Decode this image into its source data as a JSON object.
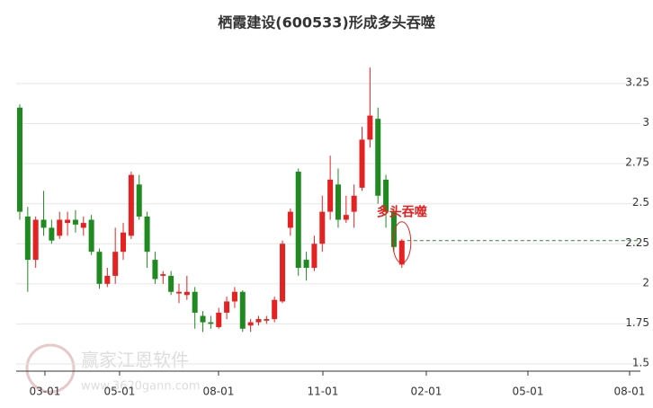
{
  "chart_data": {
    "type": "candlestick",
    "title": "栖霞建设(600533)形成多头吞噬",
    "annotation": "多头吞噬",
    "reference_line": 2.27,
    "watermark": "赢家江恩软件",
    "watermark_url": "www.3620gann.com",
    "up_color": "#e52222",
    "down_color": "#1f8a1f",
    "x": [
      0,
      1,
      2,
      3,
      4,
      5,
      6,
      7,
      8,
      9,
      10,
      11,
      12,
      13,
      14,
      15,
      16,
      17,
      18,
      19,
      20,
      21,
      22,
      23,
      24,
      25,
      26,
      27,
      28,
      29,
      30,
      31,
      32,
      33,
      34,
      35,
      36,
      37,
      38,
      39,
      40,
      41,
      42,
      43,
      44,
      45,
      46,
      47,
      48
    ],
    "open": [
      3.1,
      2.42,
      2.15,
      2.4,
      2.35,
      2.3,
      2.38,
      2.4,
      2.35,
      2.4,
      2.2,
      2.0,
      2.05,
      2.2,
      2.3,
      2.62,
      2.42,
      2.15,
      2.05,
      2.05,
      1.94,
      1.93,
      1.95,
      1.8,
      1.76,
      1.73,
      1.82,
      1.89,
      1.95,
      1.74,
      1.76,
      1.77,
      1.78,
      1.89,
      2.35,
      2.7,
      2.15,
      2.1,
      2.25,
      2.45,
      2.62,
      2.4,
      2.45,
      2.6,
      2.9,
      3.03,
      2.65,
      2.45,
      2.12
    ],
    "high": [
      3.12,
      2.48,
      2.42,
      2.58,
      2.4,
      2.45,
      2.45,
      2.46,
      2.42,
      2.43,
      2.22,
      2.1,
      2.35,
      2.38,
      2.7,
      2.68,
      2.45,
      2.2,
      2.08,
      2.08,
      2.0,
      2.05,
      1.98,
      1.83,
      1.8,
      1.85,
      1.92,
      1.98,
      1.96,
      1.78,
      1.8,
      1.8,
      1.92,
      2.27,
      2.47,
      2.72,
      2.2,
      2.3,
      2.55,
      2.8,
      2.72,
      2.55,
      2.62,
      2.98,
      3.35,
      3.1,
      2.68,
      2.47,
      2.28
    ],
    "low": [
      2.4,
      1.95,
      2.1,
      2.3,
      2.25,
      2.28,
      2.3,
      2.32,
      2.3,
      2.18,
      1.97,
      1.98,
      2.0,
      2.15,
      2.28,
      2.4,
      2.1,
      2.0,
      2.0,
      1.93,
      1.88,
      1.9,
      1.72,
      1.7,
      1.72,
      1.72,
      1.78,
      1.85,
      1.7,
      1.7,
      1.74,
      1.75,
      1.76,
      1.88,
      2.3,
      2.05,
      2.02,
      2.08,
      2.2,
      2.4,
      2.35,
      2.38,
      2.35,
      2.58,
      2.85,
      2.5,
      2.35,
      2.2,
      2.1
    ],
    "close": [
      2.45,
      2.15,
      2.4,
      2.35,
      2.27,
      2.4,
      2.4,
      2.37,
      2.38,
      2.2,
      2.0,
      2.05,
      2.2,
      2.32,
      2.68,
      2.42,
      2.2,
      2.03,
      2.06,
      1.95,
      1.95,
      1.95,
      1.82,
      1.76,
      1.75,
      1.82,
      1.89,
      1.95,
      1.72,
      1.76,
      1.78,
      1.78,
      1.9,
      2.25,
      2.45,
      2.1,
      2.1,
      2.25,
      2.45,
      2.65,
      2.4,
      2.43,
      2.55,
      2.9,
      3.05,
      2.55,
      2.45,
      2.23,
      2.27
    ],
    "xlim": [
      -0.45,
      77.97
    ],
    "xticks": [
      {
        "value": 3.16,
        "label": "03-01"
      },
      {
        "value": 12.54,
        "label": "05-01"
      },
      {
        "value": 24.97,
        "label": "08-01"
      },
      {
        "value": 38.08,
        "label": "11-01"
      },
      {
        "value": 51.07,
        "label": "02-01"
      },
      {
        "value": 63.84,
        "label": "05-01"
      },
      {
        "value": 76.61,
        "label": "08-01"
      }
    ],
    "ylim": [
      1.455,
      3.463
    ],
    "yticks": [
      1.5,
      1.75,
      2,
      2.25,
      2.5,
      2.75,
      3,
      3.25
    ],
    "grid": true
  }
}
